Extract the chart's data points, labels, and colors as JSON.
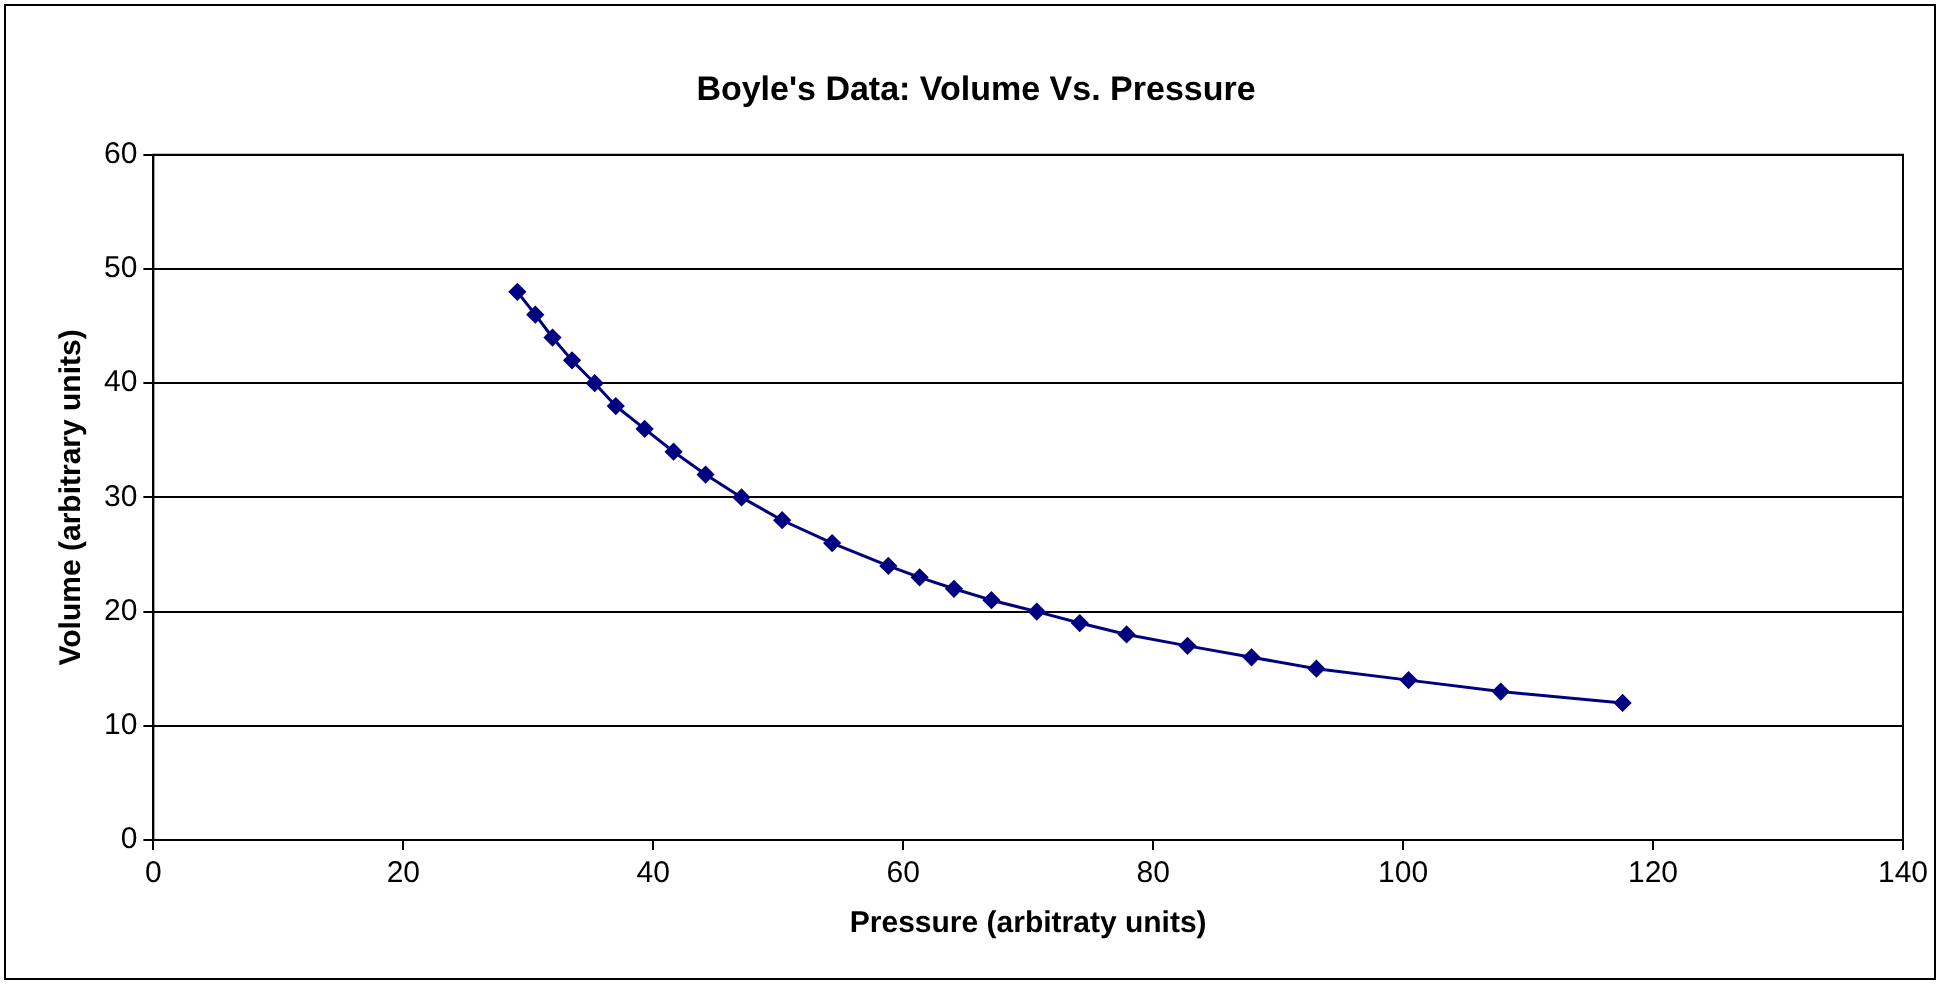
{
  "chart_data": {
    "type": "line",
    "title": "Boyle's Data: Volume Vs. Pressure",
    "xlabel": "Pressure (arbitraty units)",
    "ylabel": "Volume (arbitrary units)",
    "x": [
      29.125,
      30.5625,
      31.9375,
      33.5,
      35.3125,
      37,
      39.3125,
      41.625,
      44.1875,
      47.0625,
      50.3125,
      54.3125,
      58.8125,
      61.3125,
      64.0625,
      67.0625,
      70.6875,
      74.125,
      77.875,
      82.75,
      87.875,
      93.0625,
      100.4375,
      107.8125,
      117.5625
    ],
    "series": [
      {
        "color": "#000080",
        "values": [
          48,
          46,
          44,
          42,
          40,
          38,
          36,
          34,
          32,
          30,
          28,
          26,
          24,
          23,
          22,
          21,
          20,
          19,
          18,
          17,
          16,
          15,
          14,
          13,
          12
        ]
      }
    ],
    "xlim": [
      0,
      140
    ],
    "xticks": [
      0,
      20,
      40,
      60,
      80,
      100,
      120,
      140
    ],
    "ylim": [
      0,
      60
    ],
    "yticks": [
      0,
      10,
      20,
      30,
      40,
      50,
      60
    ],
    "grid": "y",
    "legend": false,
    "marker": "diamond",
    "line_style": "solid"
  }
}
